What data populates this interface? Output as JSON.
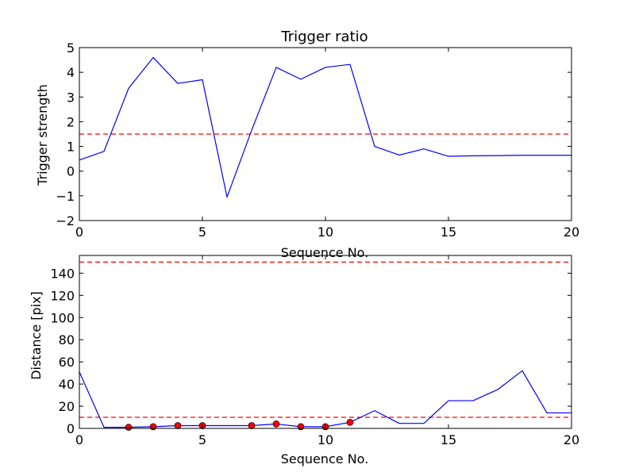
{
  "chart_data": [
    {
      "type": "line",
      "title": "Trigger ratio",
      "xlabel": "Sequence No.",
      "ylabel": "Trigger strength",
      "xlim": [
        0,
        20
      ],
      "ylim": [
        -2,
        5
      ],
      "xticks": [
        0,
        5,
        10,
        15,
        20
      ],
      "yticks": [
        -2,
        -1,
        0,
        1,
        2,
        3,
        4,
        5
      ],
      "grid": false,
      "series": [
        {
          "color": "#0000ff",
          "style": "solid",
          "x": [
            0,
            1,
            2,
            3,
            4,
            5,
            6,
            7,
            8,
            9,
            10,
            11,
            12,
            13,
            14,
            15,
            16,
            17,
            18,
            19,
            20
          ],
          "values": [
            0.45,
            0.8,
            3.35,
            4.6,
            3.55,
            3.7,
            -1.05,
            1.65,
            4.2,
            3.72,
            4.2,
            4.32,
            1.0,
            0.65,
            0.9,
            0.6,
            0.62,
            0.63,
            0.64,
            0.64,
            0.64
          ]
        }
      ],
      "threshold_lines": [
        {
          "y": 1.5,
          "color": "#ff0000",
          "style": "dashed"
        }
      ]
    },
    {
      "type": "line",
      "title": "",
      "xlabel": "Sequence No.",
      "ylabel": "Distance [pix]",
      "xlim": [
        0,
        20
      ],
      "ylim": [
        0,
        156
      ],
      "xticks": [
        0,
        5,
        10,
        15,
        20
      ],
      "yticks": [
        0,
        20,
        40,
        60,
        80,
        100,
        120,
        140
      ],
      "grid": false,
      "series": [
        {
          "color": "#0000ff",
          "style": "solid",
          "x": [
            0,
            1,
            2,
            3,
            4,
            5,
            6,
            7,
            8,
            9,
            10,
            11,
            12,
            13,
            14,
            15,
            16,
            17,
            18,
            19,
            20
          ],
          "values": [
            51,
            1,
            1,
            1.5,
            2.5,
            2.5,
            2.5,
            2.5,
            4,
            1.5,
            1.5,
            5.5,
            16,
            4.5,
            4.5,
            25,
            25,
            35,
            52,
            14,
            14
          ]
        }
      ],
      "markers": {
        "color": "#ff0000",
        "x": [
          2,
          3,
          4,
          5,
          7,
          8,
          9,
          10,
          11
        ],
        "values": [
          1,
          1.5,
          2.5,
          2.5,
          2.5,
          4,
          1.5,
          1.5,
          5.5
        ]
      },
      "threshold_lines": [
        {
          "y": 10,
          "color": "#ff0000",
          "style": "dashed"
        },
        {
          "y": 150,
          "color": "#ff0000",
          "style": "dashed"
        }
      ]
    }
  ]
}
